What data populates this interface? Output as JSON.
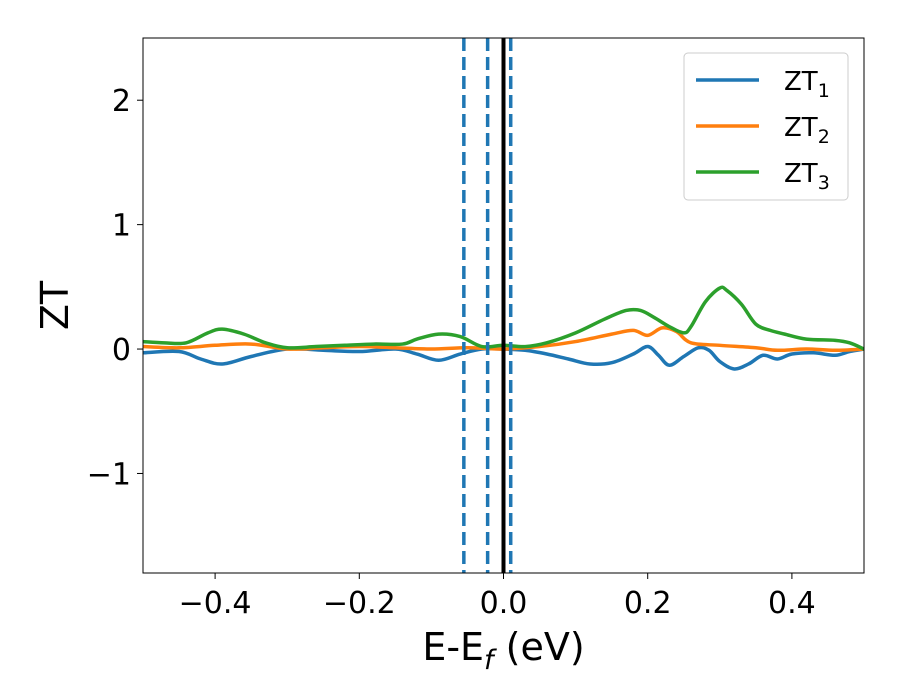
{
  "chart_data": {
    "type": "line",
    "xlabel": {
      "main": "E-E",
      "sub": "f",
      "tail": " (eV)"
    },
    "ylabel": "ZT",
    "xlim": [
      -0.5,
      0.5
    ],
    "ylim": [
      -1.8,
      2.5
    ],
    "xticks": [
      -0.4,
      -0.2,
      0.0,
      0.2,
      0.4
    ],
    "xtick_labels": [
      "−0.4",
      "−0.2",
      "0.0",
      "0.2",
      "0.4"
    ],
    "yticks": [
      -1,
      0,
      1,
      2
    ],
    "ytick_labels": [
      "−1",
      "0",
      "1",
      "2"
    ],
    "grid": false,
    "legend_position": "upper right",
    "vertical_lines": [
      {
        "x": 0.0,
        "style": "solid",
        "color": "#000000"
      },
      {
        "x": -0.055,
        "style": "dashed",
        "color": "#1f77b4"
      },
      {
        "x": -0.022,
        "style": "dashed",
        "color": "#1f77b4"
      },
      {
        "x": 0.01,
        "style": "dashed",
        "color": "#1f77b4"
      }
    ],
    "series": [
      {
        "name": "ZT",
        "sub": "1",
        "color": "#1f77b4",
        "x": [
          -0.5,
          -0.45,
          -0.42,
          -0.39,
          -0.35,
          -0.3,
          -0.25,
          -0.2,
          -0.15,
          -0.12,
          -0.09,
          -0.06,
          -0.03,
          0.0,
          0.03,
          0.06,
          0.09,
          0.12,
          0.15,
          0.18,
          0.2,
          0.215,
          0.23,
          0.25,
          0.27,
          0.285,
          0.3,
          0.32,
          0.34,
          0.36,
          0.38,
          0.4,
          0.43,
          0.46,
          0.48,
          0.5
        ],
        "y": [
          -0.03,
          -0.02,
          -0.08,
          -0.12,
          -0.06,
          0.0,
          -0.01,
          -0.02,
          0.0,
          -0.04,
          -0.09,
          -0.04,
          0.0,
          0.0,
          -0.01,
          -0.04,
          -0.08,
          -0.12,
          -0.11,
          -0.04,
          0.02,
          -0.05,
          -0.13,
          -0.06,
          0.01,
          -0.01,
          -0.1,
          -0.16,
          -0.12,
          -0.05,
          -0.08,
          -0.04,
          -0.03,
          -0.05,
          -0.02,
          0.0
        ]
      },
      {
        "name": "ZT",
        "sub": "2",
        "color": "#ff7f0e",
        "x": [
          -0.5,
          -0.45,
          -0.4,
          -0.35,
          -0.3,
          -0.25,
          -0.2,
          -0.15,
          -0.1,
          -0.05,
          0.0,
          0.05,
          0.1,
          0.15,
          0.18,
          0.2,
          0.22,
          0.24,
          0.26,
          0.3,
          0.35,
          0.38,
          0.42,
          0.46,
          0.5
        ],
        "y": [
          0.02,
          0.01,
          0.03,
          0.04,
          0.0,
          0.01,
          0.02,
          0.01,
          0.0,
          0.01,
          0.0,
          0.02,
          0.06,
          0.12,
          0.15,
          0.11,
          0.17,
          0.14,
          0.05,
          0.03,
          0.01,
          -0.01,
          0.0,
          -0.01,
          0.0
        ]
      },
      {
        "name": "ZT",
        "sub": "3",
        "color": "#2ca02c",
        "x": [
          -0.5,
          -0.47,
          -0.44,
          -0.41,
          -0.39,
          -0.36,
          -0.33,
          -0.3,
          -0.26,
          -0.22,
          -0.18,
          -0.14,
          -0.12,
          -0.09,
          -0.06,
          -0.03,
          0.0,
          0.03,
          0.06,
          0.1,
          0.14,
          0.17,
          0.19,
          0.21,
          0.23,
          0.25,
          0.26,
          0.28,
          0.3,
          0.31,
          0.33,
          0.35,
          0.37,
          0.39,
          0.42,
          0.46,
          0.48,
          0.5
        ],
        "y": [
          0.06,
          0.05,
          0.05,
          0.13,
          0.16,
          0.12,
          0.05,
          0.01,
          0.02,
          0.03,
          0.04,
          0.04,
          0.08,
          0.12,
          0.1,
          0.02,
          0.03,
          0.02,
          0.05,
          0.13,
          0.24,
          0.31,
          0.31,
          0.25,
          0.18,
          0.13,
          0.18,
          0.38,
          0.49,
          0.47,
          0.36,
          0.2,
          0.15,
          0.12,
          0.08,
          0.07,
          0.05,
          0.0
        ]
      }
    ]
  }
}
